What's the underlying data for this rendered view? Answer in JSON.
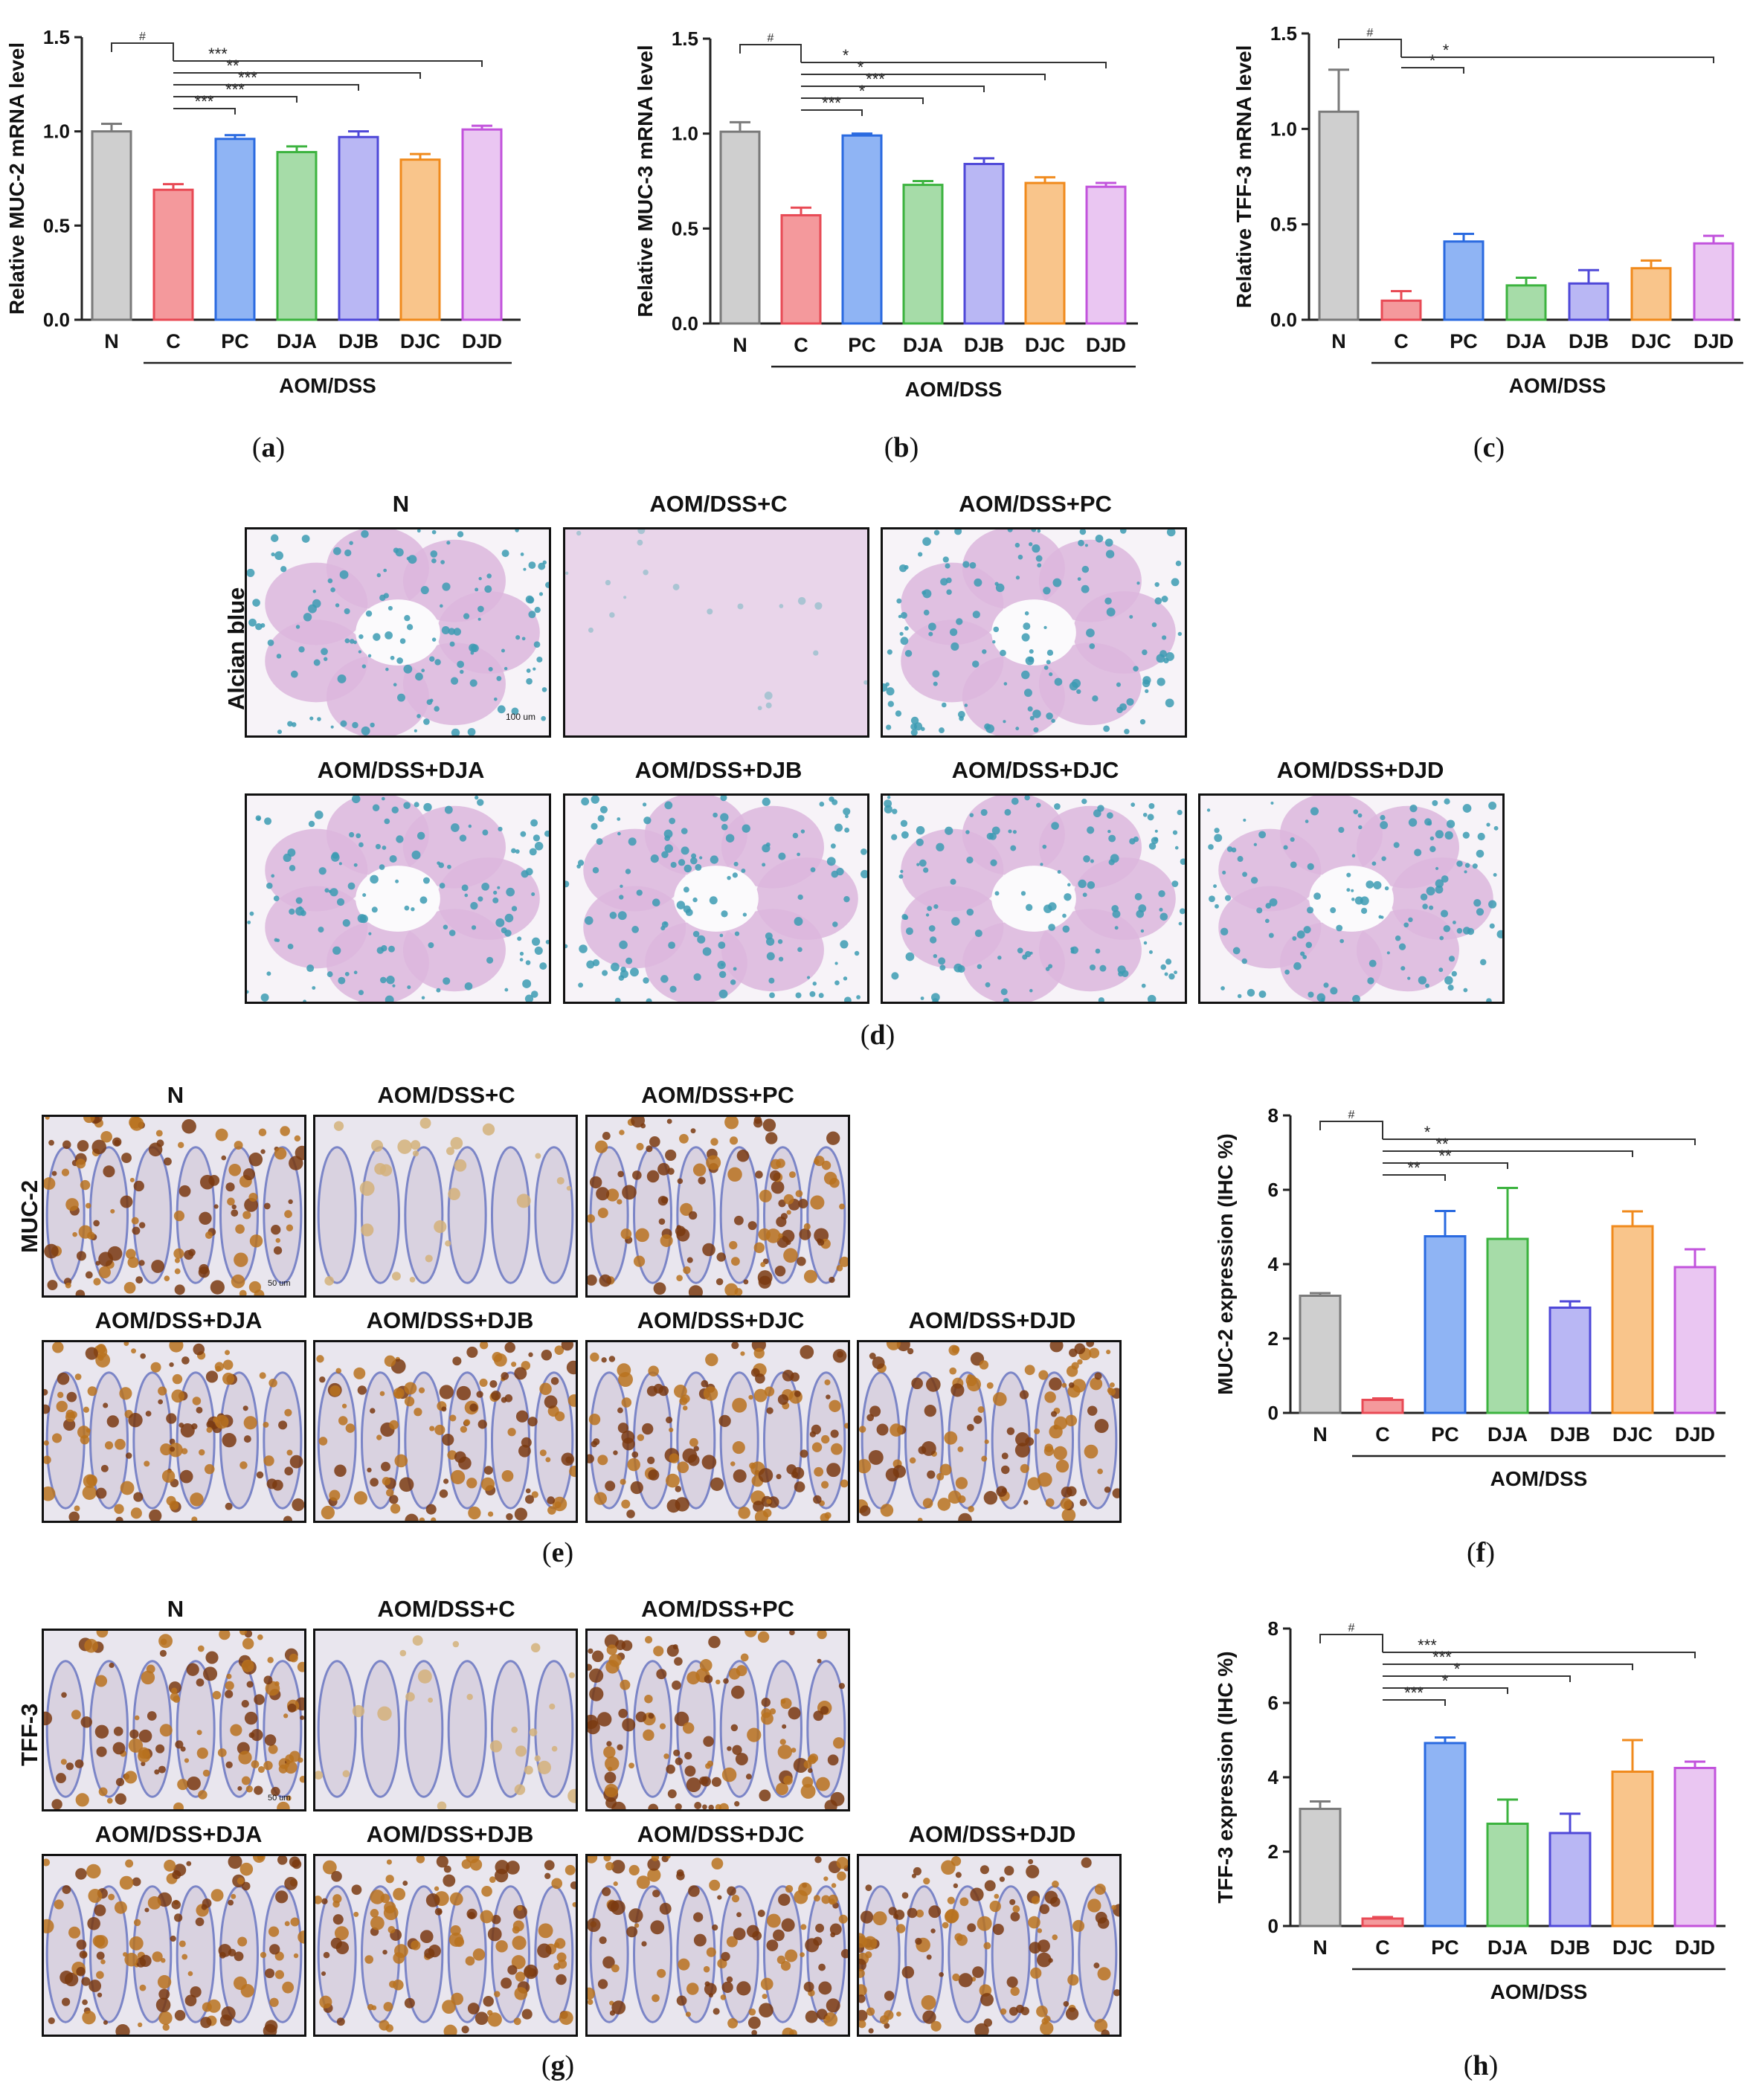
{
  "colors": {
    "N": "#cfcfcf",
    "C": "#f4999c",
    "PC": "#8fb4f4",
    "DJA": "#a6dca8",
    "DJB": "#b9b7f4",
    "DJC": "#f9c58b",
    "DJD": "#eac6f2",
    "N_edge": "#7a7a7a",
    "C_edge": "#e84a55",
    "PC_edge": "#2a6ae0",
    "DJA_edge": "#3cb33f",
    "DJB_edge": "#4f48d8",
    "DJC_edge": "#f08a1c",
    "DJD_edge": "#c253dc"
  },
  "icons": {
    "micrograph": "histology-micrograph-icon"
  },
  "panel_labels": [
    "a",
    "b",
    "c",
    "d",
    "e",
    "f",
    "g",
    "h"
  ],
  "chart_data": [
    {
      "id": "a",
      "type": "bar",
      "ylabel": "Relative MUC-2 mRNA level",
      "categories": [
        "N",
        "C",
        "PC",
        "DJA",
        "DJB",
        "DJC",
        "DJD"
      ],
      "values": [
        1.0,
        0.69,
        0.96,
        0.89,
        0.97,
        0.85,
        1.01
      ],
      "errors": [
        0.04,
        0.03,
        0.02,
        0.03,
        0.03,
        0.03,
        0.02
      ],
      "ylim": [
        0,
        1.5
      ],
      "yticks": [
        "0.0",
        "0.5",
        "1.0",
        "1.5"
      ],
      "group_label": "AOM/DSS",
      "significance": [
        {
          "from": "N",
          "to": "C",
          "label": "#"
        },
        {
          "from": "C",
          "to": "PC",
          "label": "***"
        },
        {
          "from": "C",
          "to": "DJA",
          "label": "***"
        },
        {
          "from": "C",
          "to": "DJB",
          "label": "***"
        },
        {
          "from": "C",
          "to": "DJC",
          "label": "**"
        },
        {
          "from": "C",
          "to": "DJD",
          "label": "***"
        }
      ]
    },
    {
      "id": "b",
      "type": "bar",
      "ylabel": "Relative MUC-3 mRNA level",
      "categories": [
        "N",
        "C",
        "PC",
        "DJA",
        "DJB",
        "DJC",
        "DJD"
      ],
      "values": [
        1.01,
        0.57,
        0.99,
        0.73,
        0.84,
        0.74,
        0.72
      ],
      "errors": [
        0.05,
        0.04,
        0.01,
        0.02,
        0.03,
        0.03,
        0.02
      ],
      "ylim": [
        0,
        1.5
      ],
      "yticks": [
        "0.0",
        "0.5",
        "1.0",
        "1.5"
      ],
      "group_label": "AOM/DSS",
      "significance": [
        {
          "from": "N",
          "to": "C",
          "label": "#"
        },
        {
          "from": "C",
          "to": "PC",
          "label": "***"
        },
        {
          "from": "C",
          "to": "DJA",
          "label": "*"
        },
        {
          "from": "C",
          "to": "DJB",
          "label": "***"
        },
        {
          "from": "C",
          "to": "DJC",
          "label": "*"
        },
        {
          "from": "C",
          "to": "DJD",
          "label": "*"
        }
      ]
    },
    {
      "id": "c",
      "type": "bar",
      "ylabel": "Relative TFF-3 mRNA level",
      "categories": [
        "N",
        "C",
        "PC",
        "DJA",
        "DJB",
        "DJC",
        "DJD"
      ],
      "values": [
        1.09,
        0.1,
        0.41,
        0.18,
        0.19,
        0.27,
        0.4
      ],
      "errors": [
        0.22,
        0.05,
        0.04,
        0.04,
        0.07,
        0.04,
        0.04
      ],
      "ylim": [
        0,
        1.5
      ],
      "yticks": [
        "0.0",
        "0.5",
        "1.0",
        "1.5"
      ],
      "group_label": "AOM/DSS",
      "significance": [
        {
          "from": "N",
          "to": "C",
          "label": "#"
        },
        {
          "from": "C",
          "to": "PC",
          "label": "*"
        },
        {
          "from": "C",
          "to": "DJD",
          "label": "*"
        }
      ]
    },
    {
      "id": "f",
      "type": "bar",
      "ylabel": "MUC-2 expression (IHC %)",
      "categories": [
        "N",
        "C",
        "PC",
        "DJA",
        "DJB",
        "DJC",
        "DJD"
      ],
      "values": [
        3.15,
        0.35,
        4.75,
        4.68,
        2.83,
        5.02,
        3.92
      ],
      "errors": [
        0.07,
        0.04,
        0.68,
        1.37,
        0.17,
        0.4,
        0.48
      ],
      "ylim": [
        0,
        8
      ],
      "yticks": [
        "0",
        "2",
        "4",
        "6",
        "8"
      ],
      "group_label": "AOM/DSS",
      "significance": [
        {
          "from": "N",
          "to": "C",
          "label": "#"
        },
        {
          "from": "C",
          "to": "PC",
          "label": "**"
        },
        {
          "from": "C",
          "to": "DJA",
          "label": "**"
        },
        {
          "from": "C",
          "to": "DJC",
          "label": "**"
        },
        {
          "from": "C",
          "to": "DJD",
          "label": "*"
        }
      ]
    },
    {
      "id": "h",
      "type": "bar",
      "ylabel": "TFF-3 expression (IHC %)",
      "categories": [
        "N",
        "C",
        "PC",
        "DJA",
        "DJB",
        "DJC",
        "DJD"
      ],
      "values": [
        3.15,
        0.2,
        4.92,
        2.75,
        2.5,
        4.15,
        4.25
      ],
      "errors": [
        0.2,
        0.04,
        0.15,
        0.65,
        0.52,
        0.85,
        0.17
      ],
      "ylim": [
        0,
        8
      ],
      "yticks": [
        "0",
        "2",
        "4",
        "6",
        "8"
      ],
      "group_label": "AOM/DSS",
      "significance": [
        {
          "from": "N",
          "to": "C",
          "label": "#"
        },
        {
          "from": "C",
          "to": "PC",
          "label": "***"
        },
        {
          "from": "C",
          "to": "DJA",
          "label": "*"
        },
        {
          "from": "C",
          "to": "DJB",
          "label": "*"
        },
        {
          "from": "C",
          "to": "DJC",
          "label": "***"
        },
        {
          "from": "C",
          "to": "DJD",
          "label": "***"
        }
      ]
    }
  ],
  "panel_d": {
    "row_label": "Alcian blue",
    "scale": "100 um",
    "titles": [
      "N",
      "AOM/DSS+C",
      "AOM/DSS+PC",
      "AOM/DSS+DJA",
      "AOM/DSS+DJB",
      "AOM/DSS+DJC",
      "AOM/DSS+DJD"
    ]
  },
  "panel_e": {
    "row_label": "MUC-2",
    "scale": "50 um",
    "titles": [
      "N",
      "AOM/DSS+C",
      "AOM/DSS+PC",
      "AOM/DSS+DJA",
      "AOM/DSS+DJB",
      "AOM/DSS+DJC",
      "AOM/DSS+DJD"
    ]
  },
  "panel_g": {
    "row_label": "TFF-3",
    "scale": "50 um",
    "titles": [
      "N",
      "AOM/DSS+C",
      "AOM/DSS+PC",
      "AOM/DSS+DJA",
      "AOM/DSS+DJB",
      "AOM/DSS+DJC",
      "AOM/DSS+DJD"
    ]
  }
}
